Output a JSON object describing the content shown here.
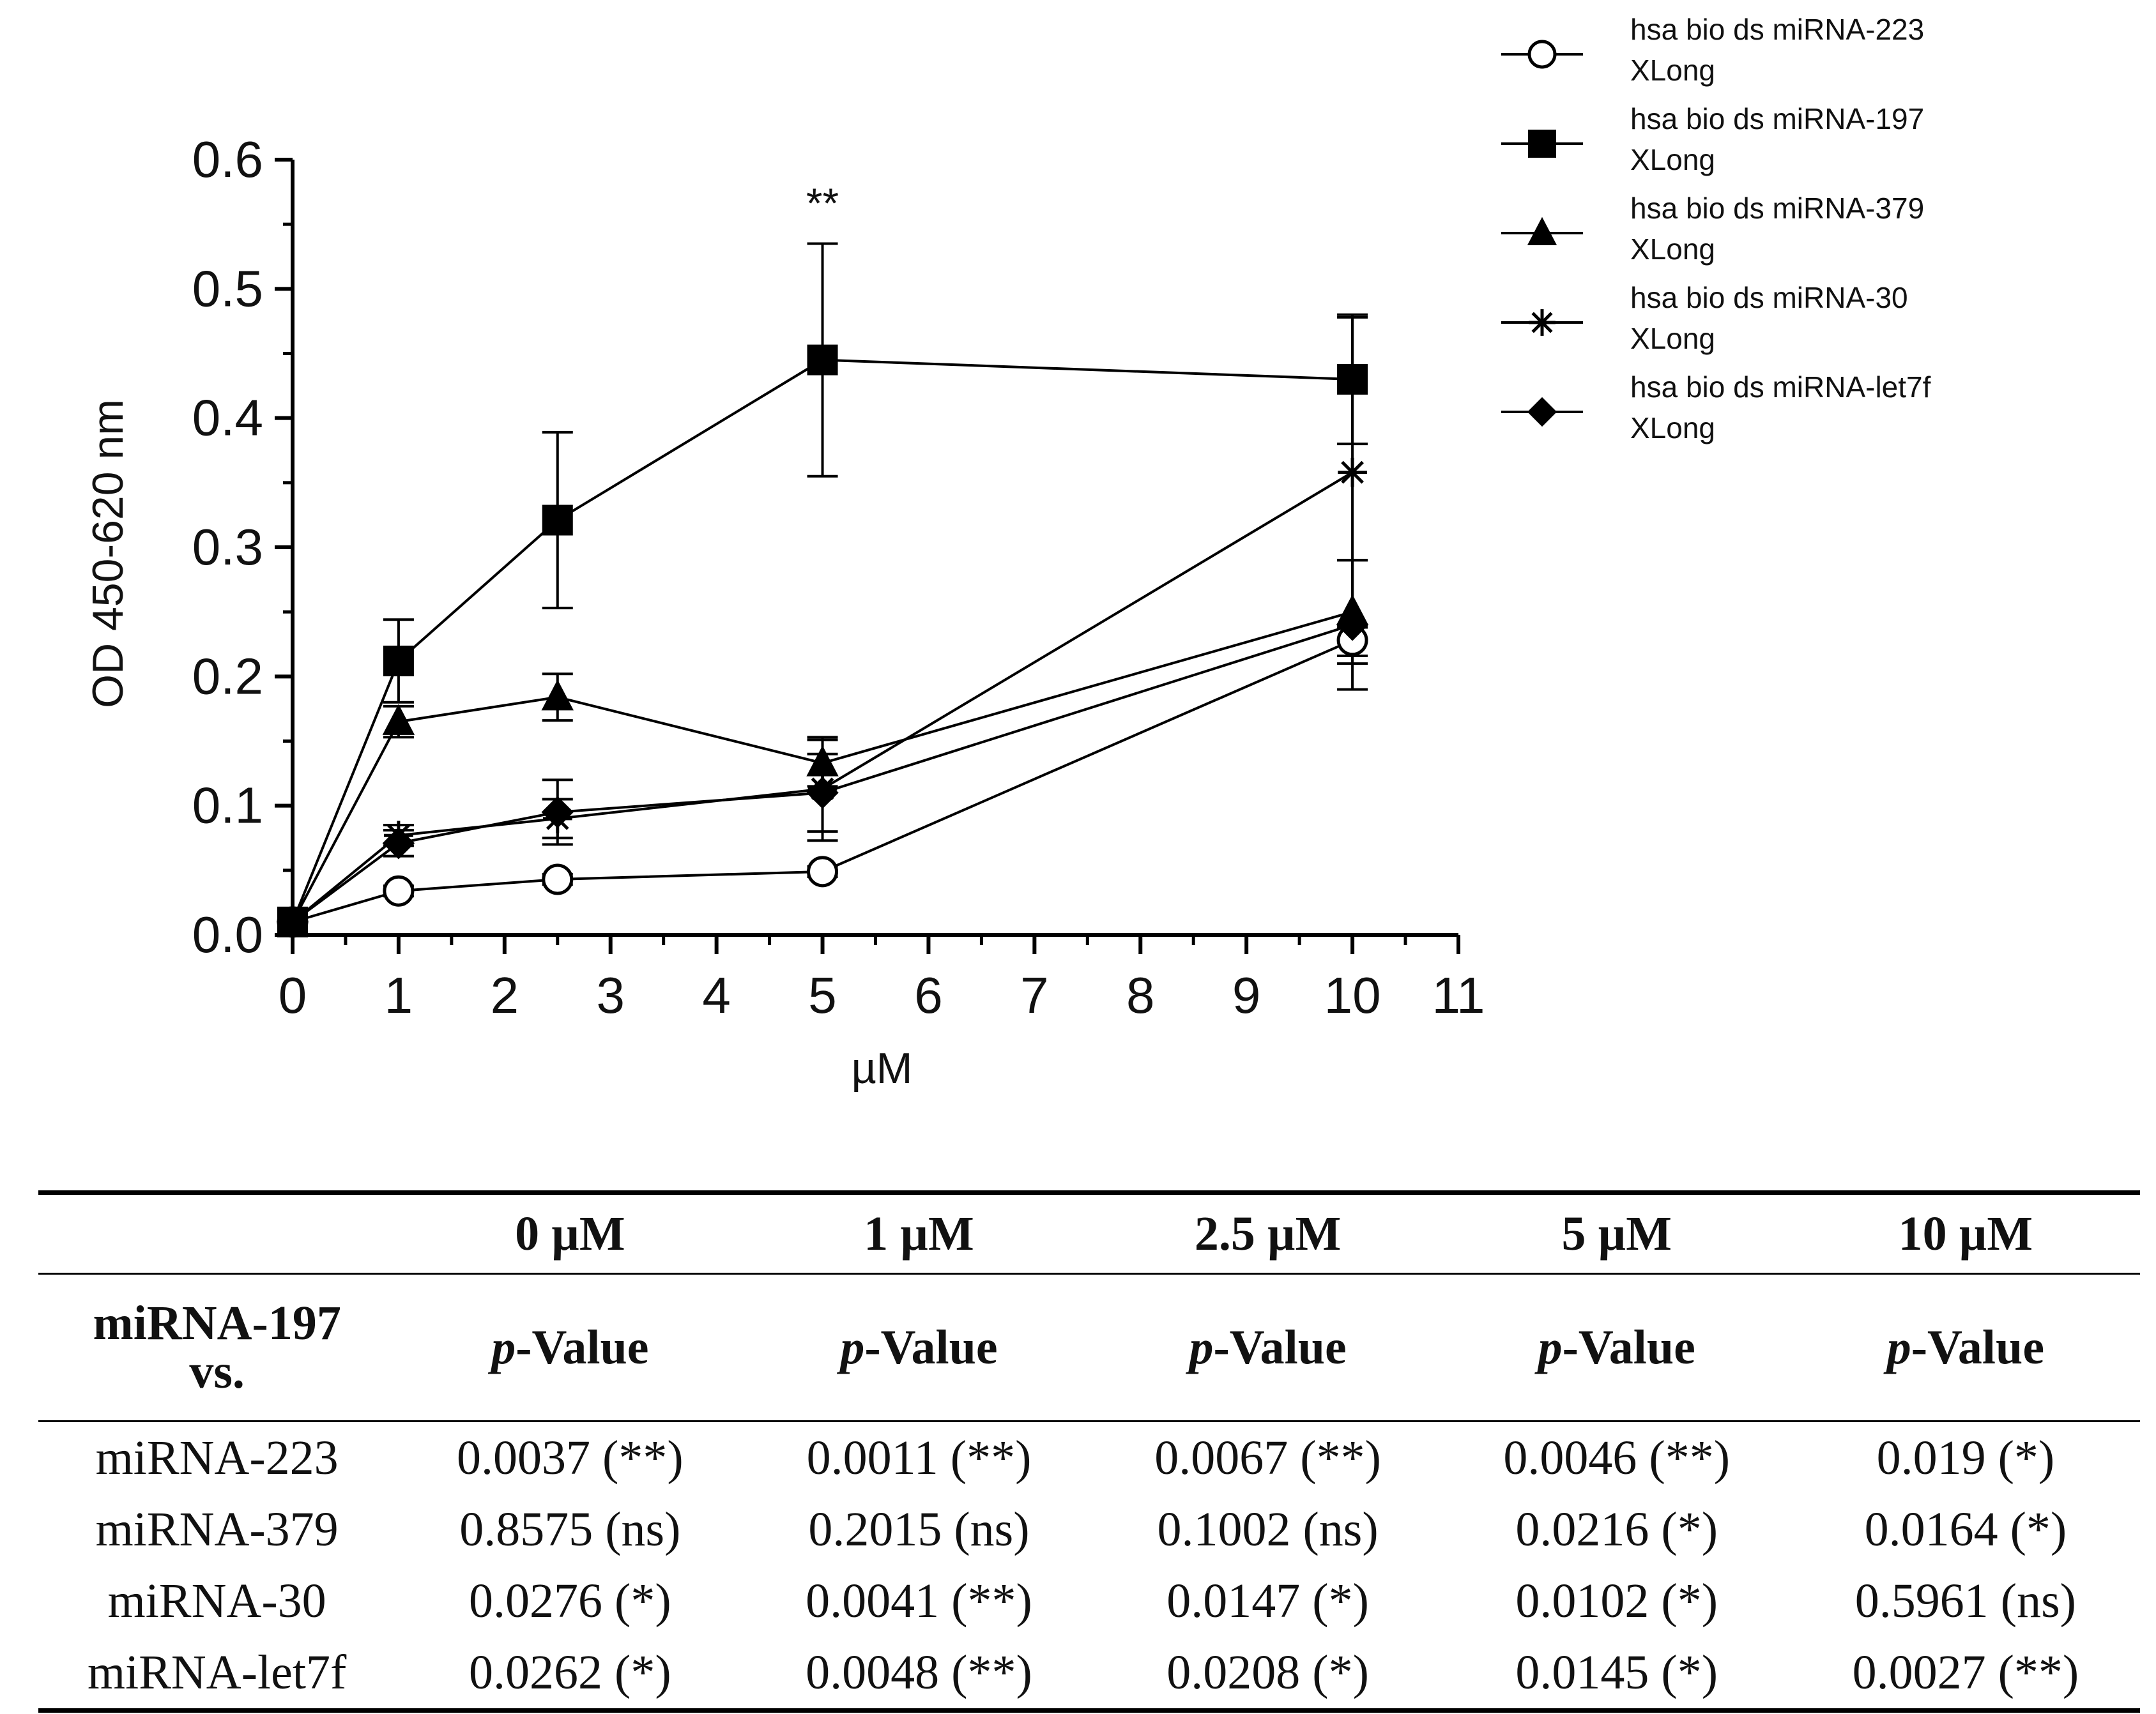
{
  "chart_data": {
    "type": "line",
    "ylabel": "OD 450-620 nm",
    "xlabel": "µM",
    "xlim": [
      0,
      11
    ],
    "ylim": [
      0,
      0.6
    ],
    "xticks": [
      "0",
      "1",
      "2",
      "3",
      "4",
      "5",
      "6",
      "7",
      "8",
      "9",
      "10",
      "11"
    ],
    "yticks": [
      "0.0",
      "0.1",
      "0.2",
      "0.3",
      "0.4",
      "0.5",
      "0.6"
    ],
    "annotation": {
      "text": "**",
      "x": 5,
      "y": 0.555
    },
    "legend_position": "top-right",
    "x": [
      0,
      1,
      2.5,
      5,
      10
    ],
    "series": [
      {
        "name": "hsa bio ds miRNA-223",
        "name_line2": "XLong",
        "marker": "circle-open",
        "values": [
          0.01,
          0.034,
          0.043,
          0.049,
          0.228
        ],
        "errors": [
          0.003,
          0.004,
          0.004,
          0.004,
          0.012
        ]
      },
      {
        "name": "hsa bio ds miRNA-197",
        "name_line2": "XLong",
        "marker": "square",
        "values": [
          0.01,
          0.212,
          0.321,
          0.445,
          0.43
        ],
        "errors": [
          0.003,
          0.032,
          0.068,
          0.09,
          0.05
        ]
      },
      {
        "name": "hsa bio ds miRNA-379",
        "name_line2": "XLong",
        "marker": "triangle",
        "values": [
          0.01,
          0.165,
          0.184,
          0.133,
          0.25
        ],
        "errors": [
          0.003,
          0.012,
          0.018,
          0.018,
          0.04
        ]
      },
      {
        "name": "hsa bio ds miRNA-30",
        "name_line2": "XLong",
        "marker": "asterisk",
        "values": [
          0.01,
          0.077,
          0.09,
          0.113,
          0.358
        ],
        "errors": [
          0.003,
          0.008,
          0.015,
          0.04,
          0.12
        ]
      },
      {
        "name": "hsa bio ds miRNA-let7f",
        "name_line2": "XLong",
        "marker": "diamond",
        "values": [
          0.01,
          0.071,
          0.095,
          0.11,
          0.24
        ],
        "errors": [
          0.003,
          0.01,
          0.025,
          0.03,
          0.05
        ]
      }
    ]
  },
  "table": {
    "header_row": [
      "",
      "0 µM",
      "1 µM",
      "2.5 µM",
      "5 µM",
      "10 µM"
    ],
    "sub_row_label_1": "miRNA-197",
    "sub_row_label_2": "vs.",
    "p_italic": "p",
    "p_rest": "-Value",
    "rows": [
      {
        "label": "miRNA-223",
        "cells": [
          "0.0037 (**)",
          "0.0011 (**)",
          "0.0067 (**)",
          "0.0046 (**)",
          "0.019 (*)"
        ]
      },
      {
        "label": "miRNA-379",
        "cells": [
          "0.8575 (ns)",
          "0.2015 (ns)",
          "0.1002 (ns)",
          "0.0216 (*)",
          "0.0164 (*)"
        ]
      },
      {
        "label": "miRNA-30",
        "cells": [
          "0.0276 (*)",
          "0.0041 (**)",
          "0.0147 (*)",
          "0.0102 (*)",
          "0.5961 (ns)"
        ]
      },
      {
        "label": "miRNA-let7f",
        "cells": [
          "0.0262 (*)",
          "0.0048 (**)",
          "0.0208 (*)",
          "0.0145 (*)",
          "0.0027 (**)"
        ]
      }
    ]
  }
}
